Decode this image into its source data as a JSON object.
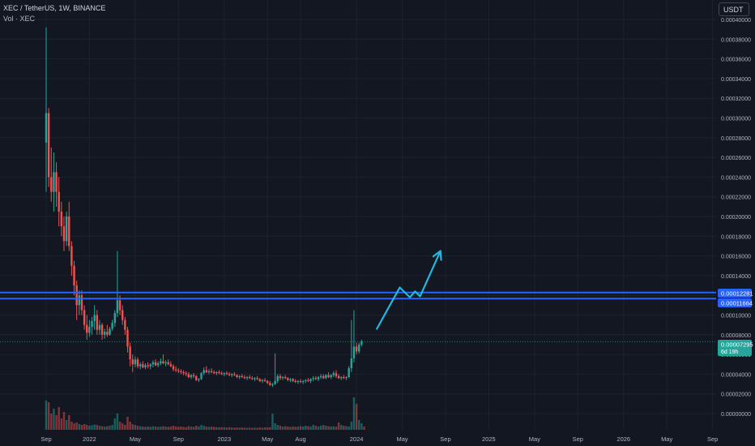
{
  "header": {
    "title": "XEC / TetherUS, 1W, BINANCE",
    "volume_label": "Vol · XEC",
    "currency": "USDT"
  },
  "price_tags": {
    "resistance_upper": "0.00012281",
    "resistance_lower": "0.00011664",
    "current_price": "0.00007295",
    "countdown": "6d 19h"
  },
  "colors": {
    "background": "#131722",
    "up": "#26a69a",
    "down": "#ef5350",
    "level_lines": "#2962ff",
    "projection_arrow": "#22b8e0",
    "grid": "#1e222d"
  },
  "chart_data": {
    "type": "candlestick",
    "title": "XEC / TetherUS, 1W, BINANCE",
    "x_axis": {
      "tick_labels": [
        "Sep",
        "2022",
        "May",
        "Sep",
        "2023",
        "May",
        "Aug",
        "2024",
        "May",
        "Sep",
        "2025",
        "May",
        "Sep",
        "2026",
        "May",
        "Sep"
      ],
      "tick_weeks": [
        0,
        17,
        35,
        52,
        70,
        87,
        100,
        122,
        140,
        157,
        174,
        192,
        209,
        227,
        244,
        262
      ]
    },
    "y_axis": {
      "ylim": [
        0,
        0.00042
      ],
      "tick_labels": [
        "0.00000000",
        "0.00002000",
        "0.00004000",
        "0.00006000",
        "0.00008000",
        "0.00010000",
        "0.00012000",
        "0.00014000",
        "0.00016000",
        "0.00018000",
        "0.00020000",
        "0.00022000",
        "0.00024000",
        "0.00026000",
        "0.00028000",
        "0.00030000",
        "0.00032000",
        "0.00034000",
        "0.00036000",
        "0.00038000",
        "0.00040000"
      ],
      "tick_values": [
        0,
        2e-05,
        4e-05,
        6e-05,
        8e-05,
        0.0001,
        0.00012,
        0.00014,
        0.00016,
        0.00018,
        0.0002,
        0.00022,
        0.00024,
        0.00026,
        0.00028,
        0.0003,
        0.00032,
        0.00034,
        0.00036,
        0.00038,
        0.0004
      ]
    },
    "horizontal_levels": [
      0.00012281,
      0.00011664
    ],
    "current_price": 7.295e-05,
    "projection_path": [
      {
        "week": 130,
        "price": 8.6e-05
      },
      {
        "week": 139,
        "price": 0.000128
      },
      {
        "week": 143,
        "price": 0.000118
      },
      {
        "week": 145,
        "price": 0.000124
      },
      {
        "week": 147,
        "price": 0.000119
      },
      {
        "week": 155,
        "price": 0.000165
      }
    ],
    "candles": [
      {
        "o": 0.000275,
        "h": 0.000392,
        "l": 0.000225,
        "c": 0.000305
      },
      {
        "o": 0.000305,
        "h": 0.00031,
        "l": 0.00023,
        "c": 0.00024
      },
      {
        "o": 0.00024,
        "h": 0.00027,
        "l": 0.000215,
        "c": 0.000225
      },
      {
        "o": 0.000225,
        "h": 0.000265,
        "l": 0.000205,
        "c": 0.000245
      },
      {
        "o": 0.000245,
        "h": 0.000255,
        "l": 0.00021,
        "c": 0.000225
      },
      {
        "o": 0.000225,
        "h": 0.00024,
        "l": 0.00019,
        "c": 0.000205
      },
      {
        "o": 0.000205,
        "h": 0.000215,
        "l": 0.00018,
        "c": 0.00019
      },
      {
        "o": 0.00019,
        "h": 0.0002,
        "l": 0.000165,
        "c": 0.000175
      },
      {
        "o": 0.000175,
        "h": 0.000205,
        "l": 0.00017,
        "c": 0.0002
      },
      {
        "o": 0.0002,
        "h": 0.000215,
        "l": 0.000165,
        "c": 0.00017
      },
      {
        "o": 0.00017,
        "h": 0.000175,
        "l": 0.00014,
        "c": 0.00015
      },
      {
        "o": 0.00015,
        "h": 0.000155,
        "l": 0.00012,
        "c": 0.00013
      },
      {
        "o": 0.00013,
        "h": 0.000135,
        "l": 9.5e-05,
        "c": 0.00011
      },
      {
        "o": 0.00011,
        "h": 0.000125,
        "l": 0.0001,
        "c": 0.00012
      },
      {
        "o": 0.00012,
        "h": 0.000125,
        "l": 0.0001,
        "c": 0.000105
      },
      {
        "o": 0.000105,
        "h": 0.00011,
        "l": 8.5e-05,
        "c": 9e-05
      },
      {
        "o": 9e-05,
        "h": 0.0001,
        "l": 7.5e-05,
        "c": 8.2e-05
      },
      {
        "o": 8.2e-05,
        "h": 9.5e-05,
        "l": 7.8e-05,
        "c": 8.8e-05
      },
      {
        "o": 8.8e-05,
        "h": 9.8e-05,
        "l": 8e-05,
        "c": 9.4e-05
      },
      {
        "o": 9.4e-05,
        "h": 0.00011,
        "l": 8.5e-05,
        "c": 0.0001
      },
      {
        "o": 0.0001,
        "h": 0.000105,
        "l": 8e-05,
        "c": 8.5e-05
      },
      {
        "o": 8.5e-05,
        "h": 9.5e-05,
        "l": 8e-05,
        "c": 9e-05
      },
      {
        "o": 9e-05,
        "h": 9.2e-05,
        "l": 7.5e-05,
        "c": 8e-05
      },
      {
        "o": 8e-05,
        "h": 8.6e-05,
        "l": 7.6e-05,
        "c": 8.3e-05
      },
      {
        "o": 8.3e-05,
        "h": 9e-05,
        "l": 7.8e-05,
        "c": 8e-05
      },
      {
        "o": 8e-05,
        "h": 8.8e-05,
        "l": 7.9e-05,
        "c": 8.6e-05
      },
      {
        "o": 8.6e-05,
        "h": 9.5e-05,
        "l": 8.4e-05,
        "c": 9.2e-05
      },
      {
        "o": 9.2e-05,
        "h": 0.000105,
        "l": 8.8e-05,
        "c": 0.000102
      },
      {
        "o": 0.000102,
        "h": 0.000165,
        "l": 9.8e-05,
        "c": 0.000115
      },
      {
        "o": 0.000115,
        "h": 0.00012,
        "l": 0.0001,
        "c": 0.000105
      },
      {
        "o": 0.000105,
        "h": 0.00011,
        "l": 9e-05,
        "c": 9.5e-05
      },
      {
        "o": 9.5e-05,
        "h": 9.8e-05,
        "l": 8e-05,
        "c": 8.5e-05
      },
      {
        "o": 8.5e-05,
        "h": 8.8e-05,
        "l": 6.2e-05,
        "c": 6.8e-05
      },
      {
        "o": 6.8e-05,
        "h": 7.2e-05,
        "l": 4.8e-05,
        "c": 5.5e-05
      },
      {
        "o": 5.5e-05,
        "h": 6e-05,
        "l": 4.2e-05,
        "c": 5e-05
      },
      {
        "o": 5e-05,
        "h": 5.8e-05,
        "l": 4.7e-05,
        "c": 5.5e-05
      },
      {
        "o": 5.5e-05,
        "h": 5.7e-05,
        "l": 4.6e-05,
        "c": 4.8e-05
      },
      {
        "o": 4.8e-05,
        "h": 5.2e-05,
        "l": 4.5e-05,
        "c": 5e-05
      },
      {
        "o": 5e-05,
        "h": 5.3e-05,
        "l": 4.6e-05,
        "c": 4.7e-05
      },
      {
        "o": 4.7e-05,
        "h": 5.1e-05,
        "l": 4.5e-05,
        "c": 4.9e-05
      },
      {
        "o": 4.9e-05,
        "h": 5.2e-05,
        "l": 4.6e-05,
        "c": 4.8e-05
      },
      {
        "o": 4.8e-05,
        "h": 5.1e-05,
        "l": 4.5e-05,
        "c": 5e-05
      },
      {
        "o": 5e-05,
        "h": 5.4e-05,
        "l": 4.7e-05,
        "c": 5.2e-05
      },
      {
        "o": 5.2e-05,
        "h": 5.5e-05,
        "l": 4.8e-05,
        "c": 4.9e-05
      },
      {
        "o": 4.9e-05,
        "h": 5.3e-05,
        "l": 4.7e-05,
        "c": 5.1e-05
      },
      {
        "o": 5.1e-05,
        "h": 5.6e-05,
        "l": 4.9e-05,
        "c": 5.3e-05
      },
      {
        "o": 5.3e-05,
        "h": 6e-05,
        "l": 5e-05,
        "c": 5.1e-05
      },
      {
        "o": 5.1e-05,
        "h": 5.4e-05,
        "l": 4.8e-05,
        "c": 5.2e-05
      },
      {
        "o": 5.2e-05,
        "h": 5.5e-05,
        "l": 4.9e-05,
        "c": 5e-05
      },
      {
        "o": 5e-05,
        "h": 5.3e-05,
        "l": 4.7e-05,
        "c": 4.8e-05
      },
      {
        "o": 4.8e-05,
        "h": 5e-05,
        "l": 4.3e-05,
        "c": 4.5e-05
      },
      {
        "o": 4.5e-05,
        "h": 4.8e-05,
        "l": 4.2e-05,
        "c": 4.4e-05
      },
      {
        "o": 4.4e-05,
        "h": 4.6e-05,
        "l": 4.1e-05,
        "c": 4.3e-05
      },
      {
        "o": 4.3e-05,
        "h": 4.5e-05,
        "l": 4e-05,
        "c": 4.2e-05
      },
      {
        "o": 4.2e-05,
        "h": 4.4e-05,
        "l": 3.9e-05,
        "c": 4.1e-05
      },
      {
        "o": 4.1e-05,
        "h": 4.3e-05,
        "l": 3.8e-05,
        "c": 4e-05
      },
      {
        "o": 4e-05,
        "h": 4.2e-05,
        "l": 3.6e-05,
        "c": 3.7e-05
      },
      {
        "o": 3.7e-05,
        "h": 4e-05,
        "l": 3.5e-05,
        "c": 3.9e-05
      },
      {
        "o": 3.9e-05,
        "h": 4.1e-05,
        "l": 3.6e-05,
        "c": 3.8e-05
      },
      {
        "o": 3.8e-05,
        "h": 3.9e-05,
        "l": 3.3e-05,
        "c": 3.4e-05
      },
      {
        "o": 3.4e-05,
        "h": 3.6e-05,
        "l": 3.2e-05,
        "c": 3.5e-05
      },
      {
        "o": 3.5e-05,
        "h": 4.2e-05,
        "l": 3.4e-05,
        "c": 4.1e-05
      },
      {
        "o": 4.1e-05,
        "h": 4.7e-05,
        "l": 3.9e-05,
        "c": 4.4e-05
      },
      {
        "o": 4.4e-05,
        "h": 4.8e-05,
        "l": 4.1e-05,
        "c": 4.2e-05
      },
      {
        "o": 4.2e-05,
        "h": 4.5e-05,
        "l": 4e-05,
        "c": 4.3e-05
      },
      {
        "o": 4.3e-05,
        "h": 4.6e-05,
        "l": 4.1e-05,
        "c": 4.2e-05
      },
      {
        "o": 4.2e-05,
        "h": 4.4e-05,
        "l": 4e-05,
        "c": 4.1e-05
      },
      {
        "o": 4.1e-05,
        "h": 4.3e-05,
        "l": 3.9e-05,
        "c": 4.2e-05
      },
      {
        "o": 4.2e-05,
        "h": 4.4e-05,
        "l": 4e-05,
        "c": 4.1e-05
      },
      {
        "o": 4.1e-05,
        "h": 4.3e-05,
        "l": 3.9e-05,
        "c": 4e-05
      },
      {
        "o": 4e-05,
        "h": 4.2e-05,
        "l": 3.8e-05,
        "c": 4.1e-05
      },
      {
        "o": 4.1e-05,
        "h": 4.3e-05,
        "l": 3.9e-05,
        "c": 4e-05
      },
      {
        "o": 4e-05,
        "h": 4.2e-05,
        "l": 3.8e-05,
        "c": 3.9e-05
      },
      {
        "o": 3.9e-05,
        "h": 4.1e-05,
        "l": 3.7e-05,
        "c": 4e-05
      },
      {
        "o": 4e-05,
        "h": 4.2e-05,
        "l": 3.8e-05,
        "c": 3.9e-05
      },
      {
        "o": 3.9e-05,
        "h": 4e-05,
        "l": 3.6e-05,
        "c": 3.7e-05
      },
      {
        "o": 3.7e-05,
        "h": 3.9e-05,
        "l": 3.5e-05,
        "c": 3.8e-05
      },
      {
        "o": 3.8e-05,
        "h": 4e-05,
        "l": 3.6e-05,
        "c": 3.7e-05
      },
      {
        "o": 3.7e-05,
        "h": 3.9e-05,
        "l": 3.5e-05,
        "c": 3.6e-05
      },
      {
        "o": 3.6e-05,
        "h": 3.8e-05,
        "l": 3.4e-05,
        "c": 3.7e-05
      },
      {
        "o": 3.7e-05,
        "h": 3.9e-05,
        "l": 3.5e-05,
        "c": 3.6e-05
      },
      {
        "o": 3.6e-05,
        "h": 3.8e-05,
        "l": 3.4e-05,
        "c": 3.5e-05
      },
      {
        "o": 3.5e-05,
        "h": 3.7e-05,
        "l": 3.3e-05,
        "c": 3.6e-05
      },
      {
        "o": 3.6e-05,
        "h": 3.8e-05,
        "l": 3.4e-05,
        "c": 3.5e-05
      },
      {
        "o": 3.5e-05,
        "h": 3.6e-05,
        "l": 3.2e-05,
        "c": 3.3e-05
      },
      {
        "o": 3.3e-05,
        "h": 3.5e-05,
        "l": 3.1e-05,
        "c": 3.4e-05
      },
      {
        "o": 3.4e-05,
        "h": 3.6e-05,
        "l": 3.2e-05,
        "c": 3.3e-05
      },
      {
        "o": 3.3e-05,
        "h": 3.4e-05,
        "l": 3e-05,
        "c": 3.1e-05
      },
      {
        "o": 3.1e-05,
        "h": 3.3e-05,
        "l": 2.8e-05,
        "c": 2.9e-05
      },
      {
        "o": 2.9e-05,
        "h": 3.1e-05,
        "l": 2.7e-05,
        "c": 3e-05
      },
      {
        "o": 3e-05,
        "h": 6.1e-05,
        "l": 2.9e-05,
        "c": 3.3e-05
      },
      {
        "o": 3.3e-05,
        "h": 4e-05,
        "l": 3.1e-05,
        "c": 3.8e-05
      },
      {
        "o": 3.8e-05,
        "h": 4e-05,
        "l": 3.4e-05,
        "c": 3.6e-05
      },
      {
        "o": 3.6e-05,
        "h": 3.8e-05,
        "l": 3.4e-05,
        "c": 3.7e-05
      },
      {
        "o": 3.7e-05,
        "h": 3.9e-05,
        "l": 3.5e-05,
        "c": 3.6e-05
      },
      {
        "o": 3.6e-05,
        "h": 3.7e-05,
        "l": 3.3e-05,
        "c": 3.4e-05
      },
      {
        "o": 3.4e-05,
        "h": 3.6e-05,
        "l": 3.2e-05,
        "c": 3.5e-05
      },
      {
        "o": 3.5e-05,
        "h": 3.6e-05,
        "l": 3.2e-05,
        "c": 3.3e-05
      },
      {
        "o": 3.3e-05,
        "h": 3.5e-05,
        "l": 3.1e-05,
        "c": 3.2e-05
      },
      {
        "o": 3.2e-05,
        "h": 3.4e-05,
        "l": 3e-05,
        "c": 3.3e-05
      },
      {
        "o": 3.3e-05,
        "h": 3.5e-05,
        "l": 3.1e-05,
        "c": 3.2e-05
      },
      {
        "o": 3.2e-05,
        "h": 3.4e-05,
        "l": 3e-05,
        "c": 3.3e-05
      },
      {
        "o": 3.3e-05,
        "h": 3.5e-05,
        "l": 3.1e-05,
        "c": 3.4e-05
      },
      {
        "o": 3.4e-05,
        "h": 3.6e-05,
        "l": 3.2e-05,
        "c": 3.3e-05
      },
      {
        "o": 3.3e-05,
        "h": 3.6e-05,
        "l": 3.1e-05,
        "c": 3.5e-05
      },
      {
        "o": 3.5e-05,
        "h": 3.8e-05,
        "l": 3.3e-05,
        "c": 3.6e-05
      },
      {
        "o": 3.6e-05,
        "h": 3.8e-05,
        "l": 3.4e-05,
        "c": 3.5e-05
      },
      {
        "o": 3.5e-05,
        "h": 3.8e-05,
        "l": 3.3e-05,
        "c": 3.7e-05
      },
      {
        "o": 3.7e-05,
        "h": 4e-05,
        "l": 3.5e-05,
        "c": 3.8e-05
      },
      {
        "o": 3.8e-05,
        "h": 4e-05,
        "l": 3.5e-05,
        "c": 3.6e-05
      },
      {
        "o": 3.6e-05,
        "h": 4e-05,
        "l": 3.5e-05,
        "c": 3.9e-05
      },
      {
        "o": 3.9e-05,
        "h": 4.2e-05,
        "l": 3.6e-05,
        "c": 3.7e-05
      },
      {
        "o": 3.7e-05,
        "h": 4e-05,
        "l": 3.5e-05,
        "c": 3.9e-05
      },
      {
        "o": 3.9e-05,
        "h": 4.3e-05,
        "l": 3.7e-05,
        "c": 4.1e-05
      },
      {
        "o": 4.1e-05,
        "h": 4.4e-05,
        "l": 3.6e-05,
        "c": 3.8e-05
      },
      {
        "o": 3.8e-05,
        "h": 4e-05,
        "l": 3.5e-05,
        "c": 3.6e-05
      },
      {
        "o": 3.6e-05,
        "h": 3.8e-05,
        "l": 3.4e-05,
        "c": 3.7e-05
      },
      {
        "o": 3.7e-05,
        "h": 3.9e-05,
        "l": 3.5e-05,
        "c": 3.6e-05
      },
      {
        "o": 3.6e-05,
        "h": 3.8e-05,
        "l": 3.4e-05,
        "c": 3.7e-05
      },
      {
        "o": 3.7e-05,
        "h": 4.8e-05,
        "l": 3.6e-05,
        "c": 4.6e-05
      },
      {
        "o": 4.6e-05,
        "h": 9.5e-05,
        "l": 4.2e-05,
        "c": 5.6e-05
      },
      {
        "o": 5.6e-05,
        "h": 0.000105,
        "l": 5.2e-05,
        "c": 6.8e-05
      },
      {
        "o": 6.8e-05,
        "h": 7.2e-05,
        "l": 6e-05,
        "c": 6.3e-05
      },
      {
        "o": 6.3e-05,
        "h": 7.2e-05,
        "l": 6.1e-05,
        "c": 7e-05
      },
      {
        "o": 7e-05,
        "h": 7.5e-05,
        "l": 6.8e-05,
        "c": 7.3e-05
      }
    ],
    "volume": [
      1.8,
      1.7,
      1.0,
      1.3,
      0.9,
      1.4,
      0.7,
      1.1,
      0.6,
      0.9,
      0.5,
      0.4,
      0.45,
      0.35,
      0.3,
      0.35,
      0.3,
      0.25,
      0.28,
      0.32,
      0.3,
      0.25,
      0.22,
      0.2,
      0.22,
      0.25,
      0.3,
      0.7,
      1.0,
      0.5,
      0.4,
      0.3,
      0.8,
      0.5,
      0.35,
      0.3,
      0.25,
      0.22,
      0.2,
      0.18,
      0.2,
      0.18,
      0.22,
      0.2,
      0.18,
      0.2,
      0.22,
      0.2,
      0.18,
      0.2,
      0.25,
      0.2,
      0.18,
      0.2,
      0.18,
      0.16,
      0.22,
      0.2,
      0.18,
      0.25,
      0.2,
      0.3,
      0.25,
      0.2,
      0.18,
      0.2,
      0.18,
      0.16,
      0.15,
      0.16,
      0.15,
      0.14,
      0.15,
      0.14,
      0.13,
      0.14,
      0.13,
      0.14,
      0.13,
      0.12,
      0.13,
      0.12,
      0.13,
      0.12,
      0.14,
      0.13,
      0.15,
      0.14,
      0.16,
      1.0,
      0.4,
      0.3,
      0.25,
      0.2,
      0.22,
      0.2,
      0.18,
      0.2,
      0.18,
      0.2,
      0.22,
      0.2,
      0.25,
      0.22,
      0.2,
      0.3,
      0.25,
      0.2,
      0.25,
      0.3,
      0.25,
      0.22,
      0.2,
      0.22,
      0.2,
      0.45,
      0.3,
      0.25,
      0.22,
      0.2,
      0.5,
      2.0,
      1.6,
      0.6,
      0.4,
      0.2
    ]
  }
}
